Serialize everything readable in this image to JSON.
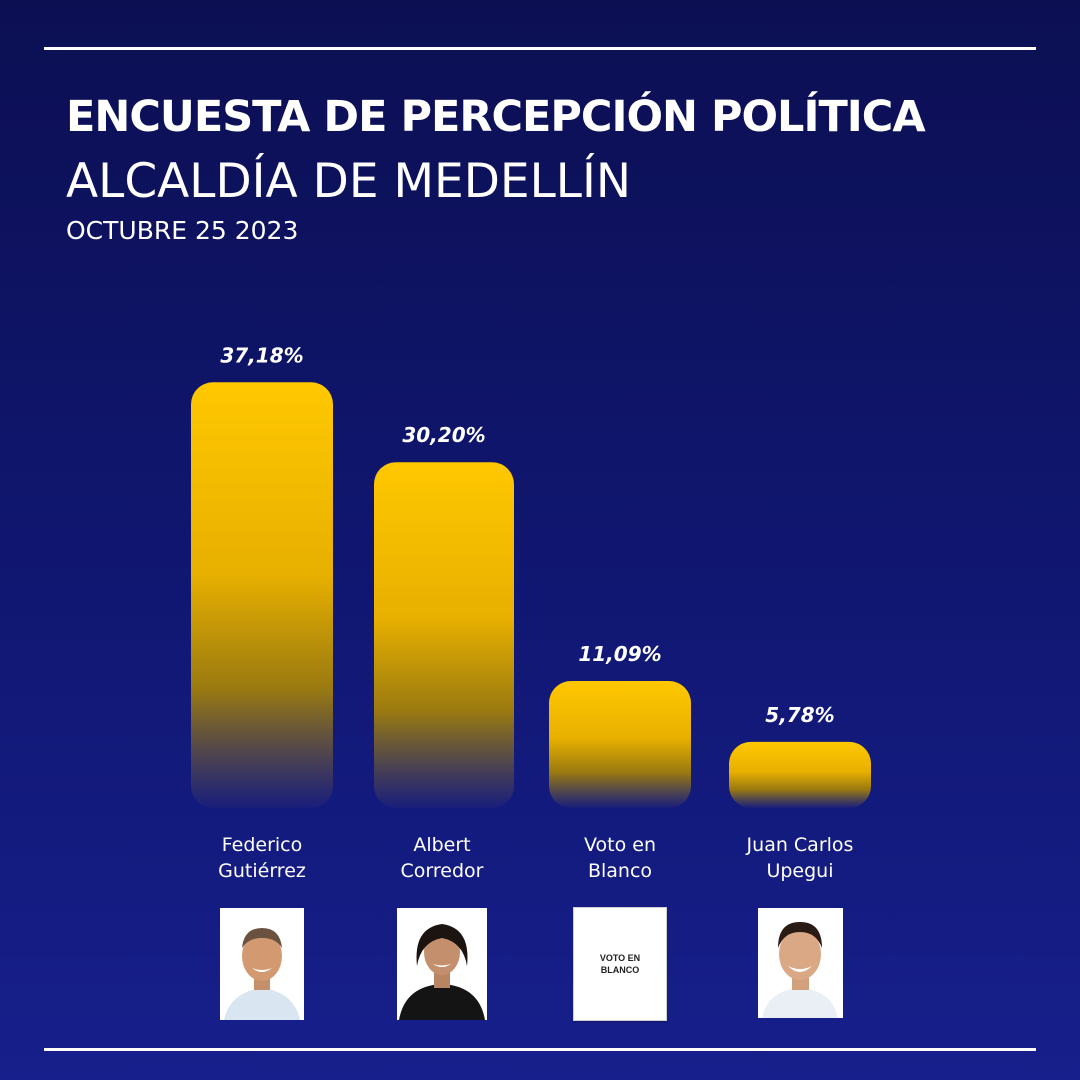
{
  "header": {
    "title": "ENCUESTA DE PERCEPCIÓN POLÍTICA",
    "subtitle": "ALCALDÍA DE MEDELLÍN",
    "date": "OCTUBRE 25 2023"
  },
  "colors": {
    "background_top": "#0c0f52",
    "background_bottom": "#171f8c",
    "bar": "#ffc800",
    "text": "#ffffff"
  },
  "candidates": [
    {
      "line1": "Federico",
      "line2": "Gutiérrez",
      "photo": "federico-gutierrez-photo"
    },
    {
      "line1": "Albert",
      "line2": "Corredor",
      "photo": "albert-corredor-photo"
    },
    {
      "line1": "Voto en",
      "line2": "Blanco",
      "photo": "blank-ballot-card",
      "ballot_text": "VOTO EN BLANCO"
    },
    {
      "line1": "Juan Carlos",
      "line2": "Upegui",
      "photo": "juan-carlos-upegui-photo"
    }
  ],
  "chart_data": {
    "type": "bar",
    "categories": [
      "Federico Gutiérrez",
      "Albert Corredor",
      "Voto en Blanco",
      "Juan Carlos Upegui"
    ],
    "values": [
      37.18,
      30.2,
      11.09,
      5.78
    ],
    "value_labels": [
      "37,18%",
      "30,20%",
      "11,09%",
      "5,78%"
    ],
    "unit": "%",
    "title": "ENCUESTA DE PERCEPCIÓN POLÍTICA",
    "subtitle": "ALCALDÍA DE MEDELLÍN",
    "xlabel": "",
    "ylabel": "",
    "ylim": [
      0,
      40
    ],
    "grid": false,
    "legend": "none"
  }
}
